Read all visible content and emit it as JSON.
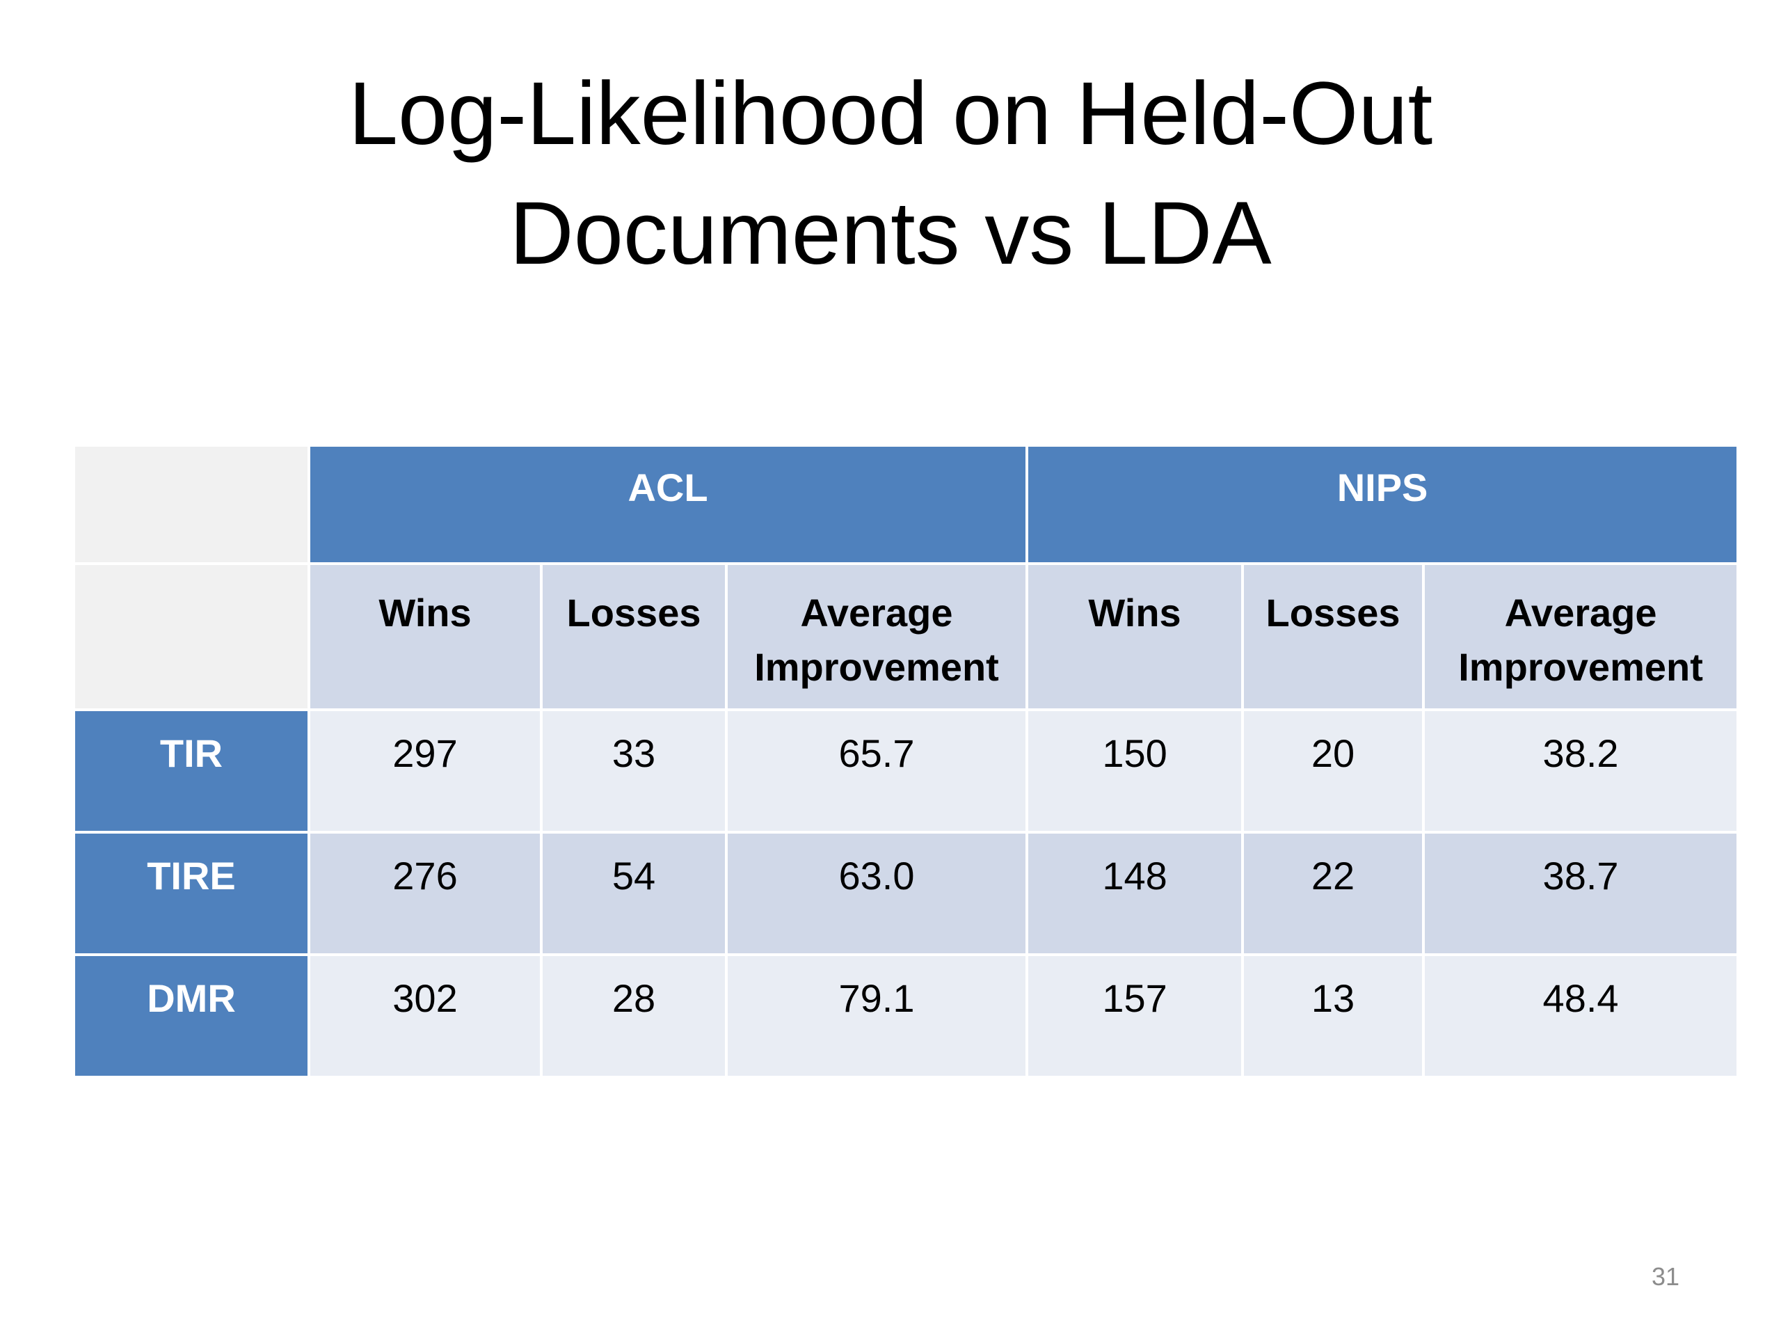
{
  "slide": {
    "title_line1": "Log-Likelihood on Held-Out",
    "title_line2": "Documents vs LDA",
    "page_number": "31"
  },
  "table": {
    "groups": [
      "ACL",
      "NIPS"
    ],
    "columns": [
      "Wins",
      "Losses",
      "Average Improvement",
      "Wins",
      "Losses",
      "Average Improvement"
    ],
    "rows": [
      {
        "label": "TIR",
        "values": [
          "297",
          "33",
          "65.7",
          "150",
          "20",
          "38.2"
        ]
      },
      {
        "label": "TIRE",
        "values": [
          "276",
          "54",
          "63.0",
          "148",
          "22",
          "38.7"
        ]
      },
      {
        "label": "DMR",
        "values": [
          "302",
          "28",
          "79.1",
          "157",
          "13",
          "48.4"
        ]
      }
    ]
  },
  "colors": {
    "header_blue": "#4f81bd",
    "band_dark": "#d0d8e8",
    "band_light": "#e9edf4",
    "corner": "#f1f1f1"
  }
}
